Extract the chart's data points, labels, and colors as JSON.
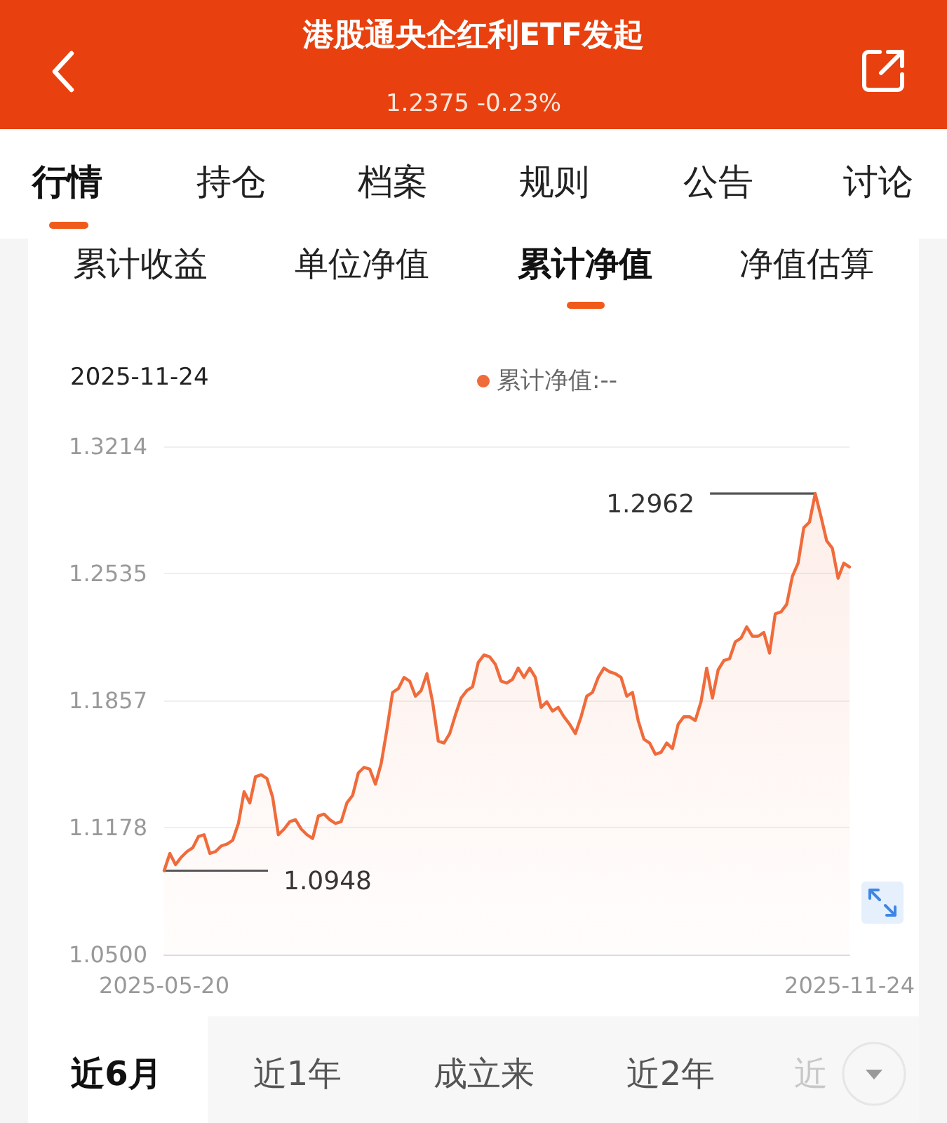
{
  "chart_data": {
    "type": "area",
    "title": "港股通央企红利ETF发起",
    "subtitle": "1.2375 -0.23%",
    "annotations": [
      "行情",
      "持仓",
      "档案",
      "规则",
      "公告",
      "讨论",
      "累计收益",
      "单位净值",
      "累计净值",
      "净值估算",
      "2025-11-24",
      "近6月",
      "近1年",
      "成立来",
      "近2年",
      "近"
    ],
    "categories": [
      "2025-05-20",
      null,
      null,
      null,
      null,
      null,
      null,
      null,
      null,
      null,
      null,
      null,
      null,
      null,
      null,
      null,
      null,
      null,
      null,
      null,
      null,
      null,
      null,
      null,
      null,
      null,
      null,
      null,
      null,
      null,
      null,
      null,
      null,
      null,
      null,
      null,
      null,
      null,
      null,
      null,
      null,
      null,
      null,
      null,
      null,
      null,
      null,
      null,
      null,
      null,
      null,
      null,
      null,
      null,
      null,
      null,
      null,
      null,
      null,
      null,
      null,
      null,
      null,
      null,
      null,
      null,
      null,
      null,
      null,
      null,
      null,
      null,
      null,
      null,
      null,
      null,
      null,
      null,
      null,
      null,
      null,
      null,
      null,
      null,
      null,
      null,
      null,
      null,
      null,
      null,
      null,
      null,
      null,
      null,
      null,
      null,
      null,
      null,
      null,
      null,
      null,
      null,
      null,
      null,
      null,
      null,
      null,
      null,
      null,
      null,
      null,
      null,
      null,
      null,
      null,
      null,
      null,
      null,
      null,
      null,
      "2025-11-24"
    ],
    "series": [
      {
        "name": "累计净值:--",
        "color": "#f06b3b",
        "values": [
          1.0948,
          1.104,
          1.098,
          1.102,
          1.105,
          1.107,
          1.113,
          1.114,
          1.104,
          1.105,
          1.108,
          1.109,
          1.111,
          1.12,
          1.137,
          1.131,
          1.145,
          1.146,
          1.144,
          1.134,
          1.114,
          1.117,
          1.121,
          1.122,
          1.117,
          1.114,
          1.112,
          1.124,
          1.125,
          1.122,
          1.12,
          1.121,
          1.131,
          1.135,
          1.147,
          1.15,
          1.149,
          1.141,
          1.152,
          1.17,
          1.19,
          1.192,
          1.198,
          1.196,
          1.188,
          1.191,
          1.2,
          1.185,
          1.164,
          1.163,
          1.168,
          1.178,
          1.187,
          1.191,
          1.193,
          1.206,
          1.21,
          1.209,
          1.205,
          1.196,
          1.195,
          1.197,
          1.203,
          1.198,
          1.203,
          1.198,
          1.182,
          1.185,
          1.18,
          1.182,
          1.177,
          1.173,
          1.168,
          1.177,
          1.188,
          1.19,
          1.198,
          1.203,
          1.201,
          1.2,
          1.198,
          1.188,
          1.19,
          1.175,
          1.165,
          1.163,
          1.157,
          1.158,
          1.163,
          1.16,
          1.173,
          1.177,
          1.177,
          1.175,
          1.185,
          1.203,
          1.187,
          1.202,
          1.207,
          1.208,
          1.217,
          1.219,
          1.225,
          1.22,
          1.22,
          1.222,
          1.211,
          1.232,
          1.233,
          1.237,
          1.252,
          1.259,
          1.278,
          1.281,
          1.2962,
          1.284,
          1.271,
          1.267,
          1.251,
          1.259,
          1.257
        ],
        "value_labels": [
          "1.0948",
          null,
          null,
          null,
          null,
          null,
          null,
          null,
          null,
          null,
          null,
          null,
          null,
          null,
          null,
          null,
          null,
          null,
          null,
          null,
          null,
          null,
          null,
          null,
          null,
          null,
          null,
          null,
          null,
          null,
          null,
          null,
          null,
          null,
          null,
          null,
          null,
          null,
          null,
          null,
          null,
          null,
          null,
          null,
          null,
          null,
          null,
          null,
          null,
          null,
          null,
          null,
          null,
          null,
          null,
          null,
          null,
          null,
          null,
          null,
          null,
          null,
          null,
          null,
          null,
          null,
          null,
          null,
          null,
          null,
          null,
          null,
          null,
          null,
          null,
          null,
          null,
          null,
          null,
          null,
          null,
          null,
          null,
          null,
          null,
          null,
          null,
          null,
          null,
          null,
          null,
          null,
          null,
          null,
          null,
          null,
          null,
          null,
          null,
          null,
          null,
          null,
          null,
          null,
          null,
          null,
          null,
          null,
          null,
          null,
          null,
          null,
          null,
          null,
          "1.2962",
          null,
          null,
          null,
          null,
          null,
          null
        ]
      }
    ],
    "ylim": [
      1.05,
      1.3214
    ],
    "yticks": [
      {
        "value": 1.05,
        "label": "1.0500"
      },
      1.1178,
      1.1857,
      1.2535,
      1.3214
    ],
    "grid": "y",
    "legend": "top"
  }
}
